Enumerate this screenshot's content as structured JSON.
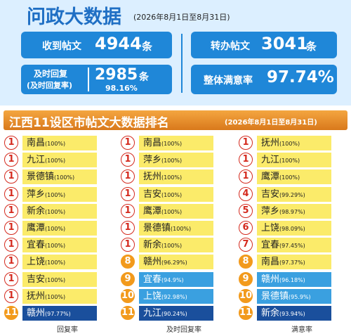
{
  "header": {
    "title": "问政大数据",
    "period": "(2026年8月1日至8月31日)"
  },
  "stats": [
    {
      "label": "收到帖文",
      "value": "4944",
      "unit": "条"
    },
    {
      "label": "转办帖文",
      "value": "3041",
      "unit": "条"
    },
    {
      "label": "及时回复",
      "label2": "(及时回复率)",
      "value": "2985",
      "unit": "条",
      "rate": "98.16%"
    },
    {
      "label": "整体满意率",
      "value": "97.74%"
    }
  ],
  "ranking": {
    "title": "江西11设区市帖文大数据排名",
    "period": "(2026年8月1日至8月31日)",
    "columns": [
      {
        "name": "回复率",
        "rows": [
          [
            "1",
            "南昌",
            "(100%)"
          ],
          [
            "1",
            "九江",
            "(100%)"
          ],
          [
            "1",
            "景德镇",
            "(100%)"
          ],
          [
            "1",
            "萍乡",
            "(100%)"
          ],
          [
            "1",
            "新余",
            "(100%)"
          ],
          [
            "1",
            "鹰潭",
            "(100%)"
          ],
          [
            "1",
            "宜春",
            "(100%)"
          ],
          [
            "1",
            "上饶",
            "(100%)"
          ],
          [
            "1",
            "吉安",
            "(100%)"
          ],
          [
            "1",
            "抚州",
            "(100%)"
          ],
          [
            "11",
            "赣州",
            "(97.77%)"
          ]
        ]
      },
      {
        "name": "及时回复率",
        "rows": [
          [
            "1",
            "南昌",
            "(100%)"
          ],
          [
            "1",
            "萍乡",
            "(100%)"
          ],
          [
            "1",
            "抚州",
            "(100%)"
          ],
          [
            "1",
            "吉安",
            "(100%)"
          ],
          [
            "1",
            "鹰潭",
            "(100%)"
          ],
          [
            "1",
            "景德镇",
            "(100%)"
          ],
          [
            "1",
            "新余",
            "(100%)"
          ],
          [
            "8",
            "赣州",
            "(96.29%)"
          ],
          [
            "9",
            "宜春",
            "(94.9%)"
          ],
          [
            "10",
            "上饶",
            "(92.98%)"
          ],
          [
            "11",
            "九江",
            "(90.24%)"
          ]
        ]
      },
      {
        "name": "满意率",
        "rows": [
          [
            "1",
            "抚州",
            "(100%)"
          ],
          [
            "1",
            "九江",
            "(100%)"
          ],
          [
            "1",
            "鹰潭",
            "(100%)"
          ],
          [
            "4",
            "吉安",
            "(99.29%)"
          ],
          [
            "5",
            "萍乡",
            "(98.97%)"
          ],
          [
            "6",
            "上饶",
            "(98.09%)"
          ],
          [
            "7",
            "宜春",
            "(97.45%)"
          ],
          [
            "8",
            "南昌",
            "(97.37%)"
          ],
          [
            "9",
            "赣州",
            "(96.18%)"
          ],
          [
            "10",
            "景德镇",
            "(95.9%)"
          ],
          [
            "11",
            "新余",
            "(93.94%)"
          ]
        ]
      }
    ]
  }
}
